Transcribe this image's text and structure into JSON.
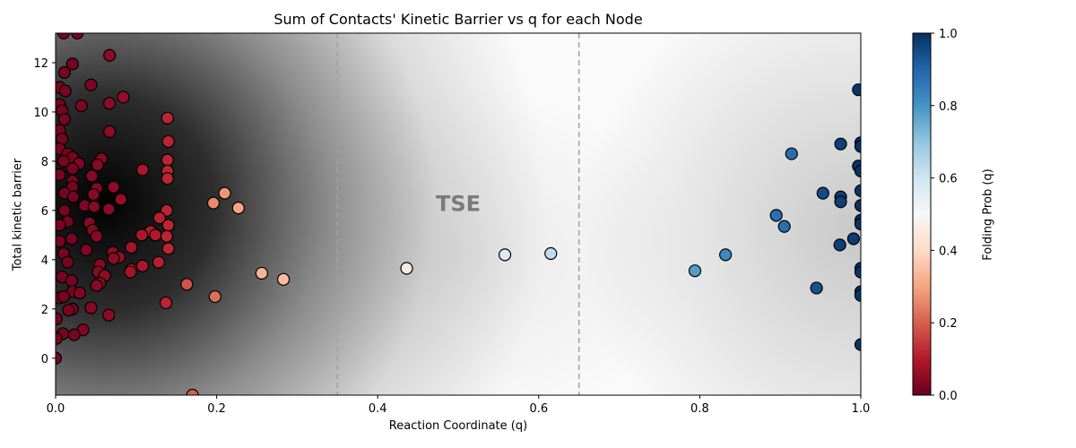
{
  "chart_data": {
    "type": "scatter",
    "title": "Sum of Contacts' Kinetic Barrier vs q for each Node",
    "xlabel": "Reaction Coordinate (q)",
    "ylabel": "Total kinetic barrier",
    "xlim": [
      0.0,
      1.0
    ],
    "ylim": [
      -1.5,
      13.2
    ],
    "xticks": [
      "0.0",
      "0.2",
      "0.4",
      "0.6",
      "0.8",
      "1.0"
    ],
    "yticks": [
      "0",
      "2",
      "4",
      "6",
      "8",
      "10",
      "12"
    ],
    "grid": false,
    "background": "2D density (KDE) in grayscale, darkest near q≈0.05, barrier≈6.8; secondary lighter density near q≈1.0, barrier≈5",
    "vlines": [
      {
        "x": 0.35,
        "style": "dashed",
        "color": "#a0a0a0"
      },
      {
        "x": 0.65,
        "style": "dashed",
        "color": "#a0a0a0"
      }
    ],
    "annotations": [
      {
        "text": "TSE",
        "x": 0.5,
        "y": 6.3,
        "color": "#7a7a7a",
        "bold": true
      }
    ],
    "colorbar": {
      "label": "Folding Prob (q)",
      "colormap": "RdBu",
      "range": [
        0.0,
        1.0
      ],
      "ticks": [
        "0.0",
        "0.2",
        "0.4",
        "0.6",
        "0.8",
        "1.0"
      ]
    },
    "points": [
      {
        "x": 0.01,
        "y": 13.2,
        "c": 0.02
      },
      {
        "x": 0.027,
        "y": 13.2,
        "c": 0.02
      },
      {
        "x": 0.067,
        "y": 12.3,
        "c": 0.05
      },
      {
        "x": 0.021,
        "y": 11.95,
        "c": 0.02
      },
      {
        "x": 0.011,
        "y": 11.6,
        "c": 0.02
      },
      {
        "x": 0.044,
        "y": 11.1,
        "c": 0.03
      },
      {
        "x": 0.005,
        "y": 11.0,
        "c": 0.02
      },
      {
        "x": 0.012,
        "y": 10.85,
        "c": 0.02
      },
      {
        "x": 0.084,
        "y": 10.6,
        "c": 0.06
      },
      {
        "x": 0.067,
        "y": 10.35,
        "c": 0.05
      },
      {
        "x": 0.032,
        "y": 10.25,
        "c": 0.03
      },
      {
        "x": 0.005,
        "y": 10.3,
        "c": 0.02
      },
      {
        "x": 0.008,
        "y": 10.05,
        "c": 0.02
      },
      {
        "x": 0.011,
        "y": 9.7,
        "c": 0.02
      },
      {
        "x": 0.139,
        "y": 9.75,
        "c": 0.12
      },
      {
        "x": 0.067,
        "y": 9.2,
        "c": 0.05
      },
      {
        "x": 0.005,
        "y": 9.25,
        "c": 0.02
      },
      {
        "x": 0.008,
        "y": 8.9,
        "c": 0.02
      },
      {
        "x": 0.14,
        "y": 8.8,
        "c": 0.12
      },
      {
        "x": 0.005,
        "y": 8.5,
        "c": 0.02
      },
      {
        "x": 0.015,
        "y": 8.3,
        "c": 0.02
      },
      {
        "x": 0.021,
        "y": 8.15,
        "c": 0.02
      },
      {
        "x": 0.057,
        "y": 8.1,
        "c": 0.04
      },
      {
        "x": 0.139,
        "y": 8.05,
        "c": 0.12
      },
      {
        "x": 0.01,
        "y": 8.0,
        "c": 0.02
      },
      {
        "x": 0.029,
        "y": 7.9,
        "c": 0.03
      },
      {
        "x": 0.052,
        "y": 7.85,
        "c": 0.04
      },
      {
        "x": 0.021,
        "y": 7.7,
        "c": 0.02
      },
      {
        "x": 0.108,
        "y": 7.65,
        "c": 0.09
      },
      {
        "x": 0.139,
        "y": 7.6,
        "c": 0.12
      },
      {
        "x": 0.005,
        "y": 7.45,
        "c": 0.02
      },
      {
        "x": 0.045,
        "y": 7.4,
        "c": 0.04
      },
      {
        "x": 0.139,
        "y": 7.3,
        "c": 0.12
      },
      {
        "x": 0.021,
        "y": 7.2,
        "c": 0.02
      },
      {
        "x": 0.072,
        "y": 6.95,
        "c": 0.05
      },
      {
        "x": 0.021,
        "y": 6.95,
        "c": 0.02
      },
      {
        "x": 0.051,
        "y": 6.9,
        "c": 0.04
      },
      {
        "x": 0.011,
        "y": 6.7,
        "c": 0.02
      },
      {
        "x": 0.21,
        "y": 6.7,
        "c": 0.28
      },
      {
        "x": 0.047,
        "y": 6.65,
        "c": 0.04
      },
      {
        "x": 0.022,
        "y": 6.55,
        "c": 0.02
      },
      {
        "x": 0.081,
        "y": 6.45,
        "c": 0.06
      },
      {
        "x": 0.196,
        "y": 6.3,
        "c": 0.26
      },
      {
        "x": 0.036,
        "y": 6.2,
        "c": 0.03
      },
      {
        "x": 0.048,
        "y": 6.15,
        "c": 0.04
      },
      {
        "x": 0.227,
        "y": 6.1,
        "c": 0.3
      },
      {
        "x": 0.066,
        "y": 6.05,
        "c": 0.05
      },
      {
        "x": 0.011,
        "y": 6.0,
        "c": 0.02
      },
      {
        "x": 0.138,
        "y": 6.0,
        "c": 0.12
      },
      {
        "x": 0.129,
        "y": 5.7,
        "c": 0.11
      },
      {
        "x": 0.015,
        "y": 5.55,
        "c": 0.02
      },
      {
        "x": 0.042,
        "y": 5.5,
        "c": 0.04
      },
      {
        "x": 0.14,
        "y": 5.4,
        "c": 0.12
      },
      {
        "x": 0.005,
        "y": 5.4,
        "c": 0.02
      },
      {
        "x": 0.046,
        "y": 5.2,
        "c": 0.04
      },
      {
        "x": 0.118,
        "y": 5.15,
        "c": 0.1
      },
      {
        "x": 0.124,
        "y": 5.0,
        "c": 0.1
      },
      {
        "x": 0.107,
        "y": 5.0,
        "c": 0.09
      },
      {
        "x": 0.138,
        "y": 4.95,
        "c": 0.12
      },
      {
        "x": 0.051,
        "y": 4.95,
        "c": 0.04
      },
      {
        "x": 0.02,
        "y": 4.85,
        "c": 0.02
      },
      {
        "x": 0.005,
        "y": 4.75,
        "c": 0.02
      },
      {
        "x": 0.094,
        "y": 4.5,
        "c": 0.08
      },
      {
        "x": 0.14,
        "y": 4.45,
        "c": 0.12
      },
      {
        "x": 0.038,
        "y": 4.4,
        "c": 0.03
      },
      {
        "x": 0.01,
        "y": 4.25,
        "c": 0.02
      },
      {
        "x": 0.071,
        "y": 4.3,
        "c": 0.05
      },
      {
        "x": 0.079,
        "y": 4.1,
        "c": 0.06
      },
      {
        "x": 0.072,
        "y": 4.05,
        "c": 0.05
      },
      {
        "x": 0.015,
        "y": 3.9,
        "c": 0.02
      },
      {
        "x": 0.128,
        "y": 3.9,
        "c": 0.11
      },
      {
        "x": 0.108,
        "y": 3.75,
        "c": 0.09
      },
      {
        "x": 0.055,
        "y": 3.8,
        "c": 0.04
      },
      {
        "x": 0.094,
        "y": 3.6,
        "c": 0.08
      },
      {
        "x": 0.093,
        "y": 3.5,
        "c": 0.08
      },
      {
        "x": 0.053,
        "y": 3.5,
        "c": 0.04
      },
      {
        "x": 0.061,
        "y": 3.35,
        "c": 0.05
      },
      {
        "x": 0.008,
        "y": 3.3,
        "c": 0.02
      },
      {
        "x": 0.02,
        "y": 3.15,
        "c": 0.02
      },
      {
        "x": 0.055,
        "y": 3.05,
        "c": 0.04
      },
      {
        "x": 0.051,
        "y": 2.95,
        "c": 0.04
      },
      {
        "x": 0.163,
        "y": 3.0,
        "c": 0.18
      },
      {
        "x": 0.256,
        "y": 3.45,
        "c": 0.33
      },
      {
        "x": 0.283,
        "y": 3.2,
        "c": 0.34
      },
      {
        "x": 0.021,
        "y": 2.7,
        "c": 0.02
      },
      {
        "x": 0.03,
        "y": 2.65,
        "c": 0.03
      },
      {
        "x": 0.005,
        "y": 2.45,
        "c": 0.02
      },
      {
        "x": 0.01,
        "y": 2.5,
        "c": 0.02
      },
      {
        "x": 0.137,
        "y": 2.25,
        "c": 0.12
      },
      {
        "x": 0.198,
        "y": 2.5,
        "c": 0.22
      },
      {
        "x": 0.044,
        "y": 2.05,
        "c": 0.04
      },
      {
        "x": 0.021,
        "y": 2.0,
        "c": 0.02
      },
      {
        "x": 0.016,
        "y": 1.95,
        "c": 0.02
      },
      {
        "x": 0.066,
        "y": 1.75,
        "c": 0.05
      },
      {
        "x": 0.001,
        "y": 1.6,
        "c": 0.02
      },
      {
        "x": 0.034,
        "y": 1.15,
        "c": 0.03
      },
      {
        "x": 0.009,
        "y": 1.0,
        "c": 0.02
      },
      {
        "x": 0.023,
        "y": 0.95,
        "c": 0.02
      },
      {
        "x": 0.001,
        "y": 0.8,
        "c": 0.02
      },
      {
        "x": 0.0,
        "y": 0.0,
        "c": 0.02
      },
      {
        "x": 0.17,
        "y": -1.5,
        "c": 0.2
      },
      {
        "x": 0.436,
        "y": 3.65,
        "c": 0.45
      },
      {
        "x": 0.558,
        "y": 4.2,
        "c": 0.57
      },
      {
        "x": 0.615,
        "y": 4.25,
        "c": 0.63
      },
      {
        "x": 0.794,
        "y": 3.55,
        "c": 0.78
      },
      {
        "x": 0.832,
        "y": 4.2,
        "c": 0.82
      },
      {
        "x": 0.895,
        "y": 5.8,
        "c": 0.88
      },
      {
        "x": 0.905,
        "y": 5.35,
        "c": 0.88
      },
      {
        "x": 0.914,
        "y": 8.3,
        "c": 0.88
      },
      {
        "x": 0.945,
        "y": 2.85,
        "c": 0.94
      },
      {
        "x": 0.953,
        "y": 6.7,
        "c": 0.95
      },
      {
        "x": 0.975,
        "y": 8.7,
        "c": 0.97
      },
      {
        "x": 0.975,
        "y": 6.55,
        "c": 0.97
      },
      {
        "x": 0.975,
        "y": 6.35,
        "c": 0.97
      },
      {
        "x": 0.974,
        "y": 4.6,
        "c": 0.97
      },
      {
        "x": 0.991,
        "y": 4.85,
        "c": 0.98
      },
      {
        "x": 0.997,
        "y": 10.9,
        "c": 0.99
      },
      {
        "x": 1.0,
        "y": 8.75,
        "c": 0.99
      },
      {
        "x": 1.0,
        "y": 8.6,
        "c": 0.99
      },
      {
        "x": 0.997,
        "y": 7.8,
        "c": 0.99
      },
      {
        "x": 1.0,
        "y": 7.6,
        "c": 0.99
      },
      {
        "x": 1.0,
        "y": 6.8,
        "c": 0.99
      },
      {
        "x": 1.0,
        "y": 6.2,
        "c": 0.99
      },
      {
        "x": 1.0,
        "y": 5.6,
        "c": 0.99
      },
      {
        "x": 1.0,
        "y": 5.45,
        "c": 0.99
      },
      {
        "x": 1.0,
        "y": 3.65,
        "c": 0.99
      },
      {
        "x": 1.0,
        "y": 3.5,
        "c": 0.99
      },
      {
        "x": 1.0,
        "y": 2.7,
        "c": 0.99
      },
      {
        "x": 1.0,
        "y": 2.55,
        "c": 0.99
      },
      {
        "x": 1.0,
        "y": 0.55,
        "c": 0.99
      }
    ]
  }
}
